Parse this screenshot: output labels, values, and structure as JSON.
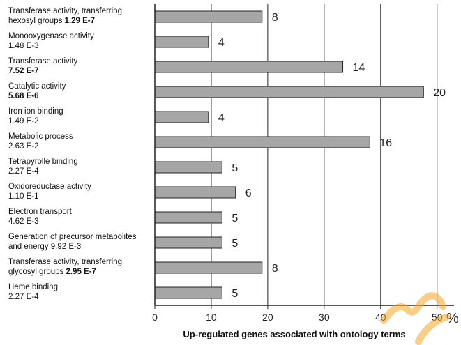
{
  "chart_data": {
    "type": "bar",
    "orientation": "horizontal",
    "title": "",
    "xlabel": "Up-regulated genes associated with ontology terms",
    "x_unit": "%",
    "xlim": [
      0,
      53
    ],
    "xticks": [
      0,
      10,
      20,
      30,
      40,
      50
    ],
    "grid": "vertical",
    "bar_color": "#a6a6a6",
    "categories": [
      {
        "lines": [
          "Transferase activity, transferring",
          "hexosyl groups"
        ],
        "pvalue": "1.29 E-7",
        "p_bold": true,
        "p_inline": true,
        "percent": 19.0,
        "count": 8
      },
      {
        "lines": [
          "Monooxygenase activity"
        ],
        "pvalue": "1.48 E-3",
        "p_bold": false,
        "p_inline": false,
        "percent": 9.5,
        "count": 4
      },
      {
        "lines": [
          "Transferase activity"
        ],
        "pvalue": "7.52 E-7",
        "p_bold": true,
        "p_inline": false,
        "percent": 33.3,
        "count": 14
      },
      {
        "lines": [
          "Catalytic activity"
        ],
        "pvalue": "5.68 E-6",
        "p_bold": true,
        "p_inline": false,
        "percent": 47.6,
        "count": 20
      },
      {
        "lines": [
          "Iron ion binding"
        ],
        "pvalue": "1.49 E-2",
        "p_bold": false,
        "p_inline": false,
        "percent": 9.5,
        "count": 4
      },
      {
        "lines": [
          "Metabolic process"
        ],
        "pvalue": "2.63 E-2",
        "p_bold": false,
        "p_inline": false,
        "percent": 38.1,
        "count": 16
      },
      {
        "lines": [
          "Tetrapyrolle binding"
        ],
        "pvalue": "2.27 E-4",
        "p_bold": false,
        "p_inline": false,
        "percent": 11.9,
        "count": 5
      },
      {
        "lines": [
          "Oxidoreductase activity"
        ],
        "pvalue": "1.10 E-1",
        "p_bold": false,
        "p_inline": false,
        "percent": 14.3,
        "count": 6
      },
      {
        "lines": [
          "Electron transport"
        ],
        "pvalue": "4.62 E-3",
        "p_bold": false,
        "p_inline": false,
        "percent": 11.9,
        "count": 5
      },
      {
        "lines": [
          "Generation of precursor metabolites",
          "and energy"
        ],
        "pvalue": "9.92 E-3",
        "p_bold": false,
        "p_inline": true,
        "percent": 11.9,
        "count": 5
      },
      {
        "lines": [
          "Transferase activity, transferring",
          "glycosyl groups"
        ],
        "pvalue": "2.95 E-7",
        "p_bold": true,
        "p_inline": true,
        "percent": 19.0,
        "count": 8
      },
      {
        "lines": [
          "Heme binding"
        ],
        "pvalue": "2.27 E-4",
        "p_bold": false,
        "p_inline": false,
        "percent": 11.9,
        "count": 5
      }
    ]
  },
  "watermark_color": "#f5a623"
}
